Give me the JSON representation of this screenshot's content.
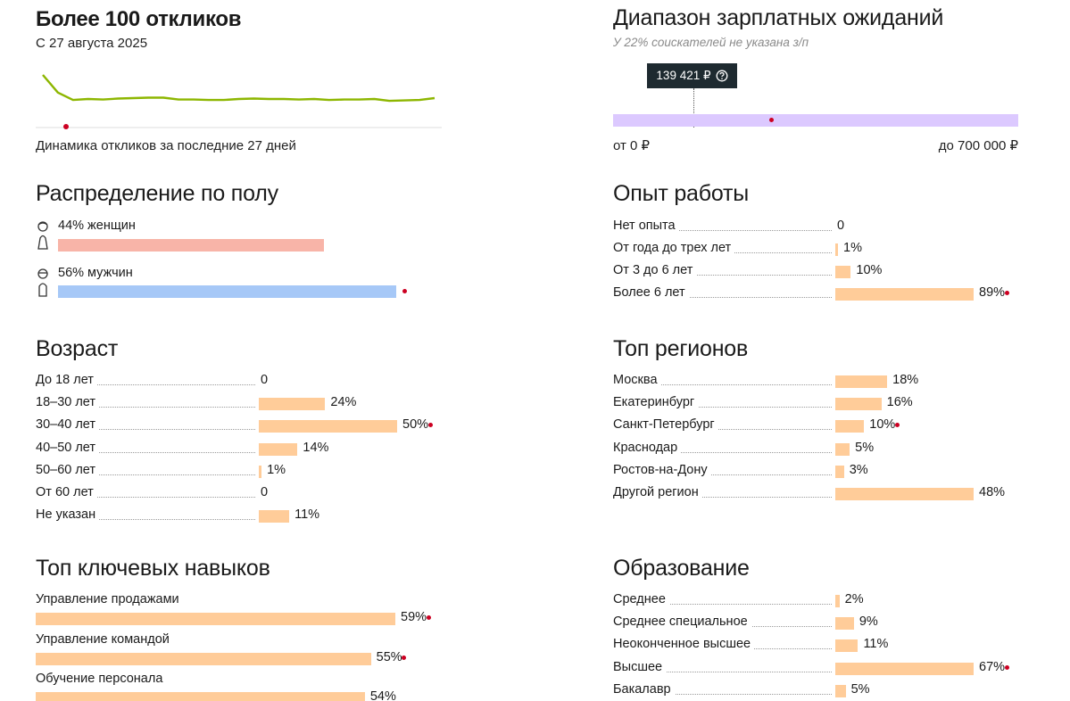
{
  "responses": {
    "title": "Более 100 откликов",
    "since": "С 27 августа 2025",
    "caption": "Динамика откликов за последние 27 дней",
    "series": [
      100,
      62,
      46,
      48,
      47,
      49,
      50,
      51,
      51,
      47,
      47,
      46,
      46,
      48,
      49,
      48,
      48,
      47,
      48,
      46,
      47,
      47,
      48,
      44,
      45,
      46,
      50
    ],
    "line_color": "#8db600"
  },
  "salary": {
    "title": "Диапазон зарплатных ожиданий",
    "note": "У 22% соискателей не указана з/п",
    "tooltip": "139 421 ₽",
    "tooltip_value": 139421,
    "marker_value": 273000,
    "min": 0,
    "max": 700000,
    "min_label": "от 0 ₽",
    "max_label": "до 700 000 ₽",
    "bar_color": "#dcc9ff"
  },
  "gender": {
    "title": "Распределение по полу",
    "women_label": "44% женщин",
    "women_value": 44,
    "men_label": "56% мужчин",
    "men_value": 56,
    "women_color": "#f8b4a8",
    "men_color": "#a6c8f7"
  },
  "experience": {
    "title": "Опыт работы",
    "rows": [
      {
        "label": "Нет опыта",
        "value": 0,
        "text": "0"
      },
      {
        "label": "От года до трех лет",
        "value": 1,
        "text": "1%"
      },
      {
        "label": "От 3 до 6 лет",
        "value": 10,
        "text": "10%"
      },
      {
        "label": "Более 6 лет",
        "value": 89,
        "text": "89%",
        "top": true
      }
    ]
  },
  "age": {
    "title": "Возраст",
    "rows": [
      {
        "label": "До 18 лет",
        "value": 0,
        "text": "0"
      },
      {
        "label": "18–30 лет",
        "value": 24,
        "text": "24%"
      },
      {
        "label": "30–40 лет",
        "value": 50,
        "text": "50%",
        "top": true
      },
      {
        "label": "40–50 лет",
        "value": 14,
        "text": "14%"
      },
      {
        "label": "50–60 лет",
        "value": 1,
        "text": "1%"
      },
      {
        "label": "От 60 лет",
        "value": 0,
        "text": "0"
      },
      {
        "label": "Не указан",
        "value": 11,
        "text": "11%"
      }
    ]
  },
  "regions": {
    "title": "Топ регионов",
    "rows": [
      {
        "label": "Москва",
        "value": 18,
        "text": "18%"
      },
      {
        "label": "Екатеринбург",
        "value": 16,
        "text": "16%"
      },
      {
        "label": "Санкт-Петербург",
        "value": 10,
        "text": "10%",
        "top": true
      },
      {
        "label": "Краснодар",
        "value": 5,
        "text": "5%"
      },
      {
        "label": "Ростов-на-Дону",
        "value": 3,
        "text": "3%"
      },
      {
        "label": "Другой регион",
        "value": 48,
        "text": "48%"
      }
    ]
  },
  "skills": {
    "title": "Топ ключевых навыков",
    "rows": [
      {
        "label": "Управление продажами",
        "value": 59,
        "text": "59%",
        "top": true
      },
      {
        "label": "Управление командой",
        "value": 55,
        "text": "55%",
        "top": true
      },
      {
        "label": "Обучение персонала",
        "value": 54,
        "text": "54%"
      }
    ]
  },
  "education": {
    "title": "Образование",
    "rows": [
      {
        "label": "Среднее",
        "value": 2,
        "text": "2%"
      },
      {
        "label": "Среднее специальное",
        "value": 9,
        "text": "9%"
      },
      {
        "label": "Неоконченное высшее",
        "value": 11,
        "text": "11%"
      },
      {
        "label": "Высшее",
        "value": 67,
        "text": "67%",
        "top": true
      },
      {
        "label": "Бакалавр",
        "value": 5,
        "text": "5%"
      }
    ]
  },
  "icons": {
    "female": "female-person-icon",
    "male": "male-person-icon",
    "help": "question-circle-icon",
    "marker": "red-dot-marker"
  },
  "colors": {
    "bar": "#ffcc99",
    "marker": "#cc0022"
  }
}
